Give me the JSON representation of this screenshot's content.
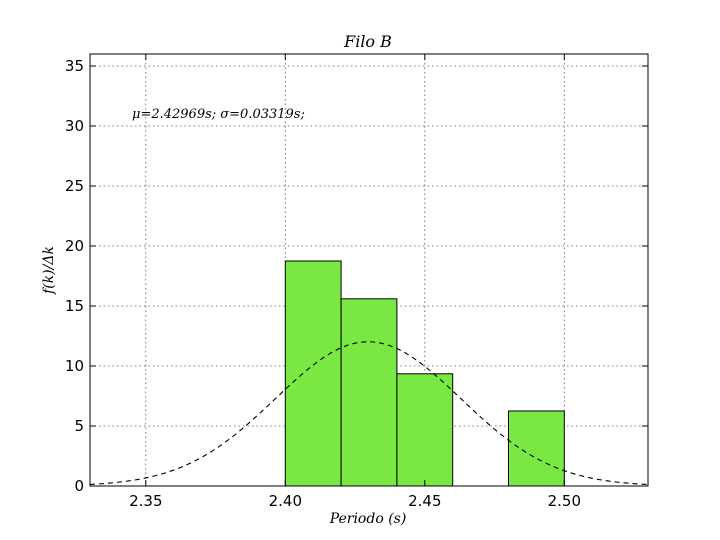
{
  "chart_data": {
    "type": "bar",
    "title": "Filo B",
    "xlabel": "Periodo (s)",
    "ylabel": "f(k)/Δk",
    "annotation": "μ=2.42969s; σ=0.03319s;",
    "xlim": [
      2.33,
      2.53
    ],
    "ylim": [
      0,
      36
    ],
    "xticks": [
      2.35,
      2.4,
      2.45,
      2.5
    ],
    "xtick_labels": [
      "2.35",
      "2.40",
      "2.45",
      "2.50"
    ],
    "yticks": [
      0,
      5,
      10,
      15,
      20,
      25,
      30,
      35
    ],
    "ytick_labels": [
      "0",
      "5",
      "10",
      "15",
      "20",
      "25",
      "30",
      "35"
    ],
    "grid": true,
    "bins": [
      {
        "x0": 2.4,
        "x1": 2.42,
        "value": 18.75
      },
      {
        "x0": 2.42,
        "x1": 2.44,
        "value": 15.6
      },
      {
        "x0": 2.44,
        "x1": 2.46,
        "value": 9.35
      },
      {
        "x0": 2.48,
        "x1": 2.5,
        "value": 6.25
      }
    ],
    "fit": {
      "type": "normal",
      "mean": 2.42969,
      "sigma": 0.03319,
      "style": "dashed"
    },
    "colors": {
      "bar_fill": "#7ae843",
      "bar_edge": "#000000",
      "fit_line": "#000000"
    }
  }
}
